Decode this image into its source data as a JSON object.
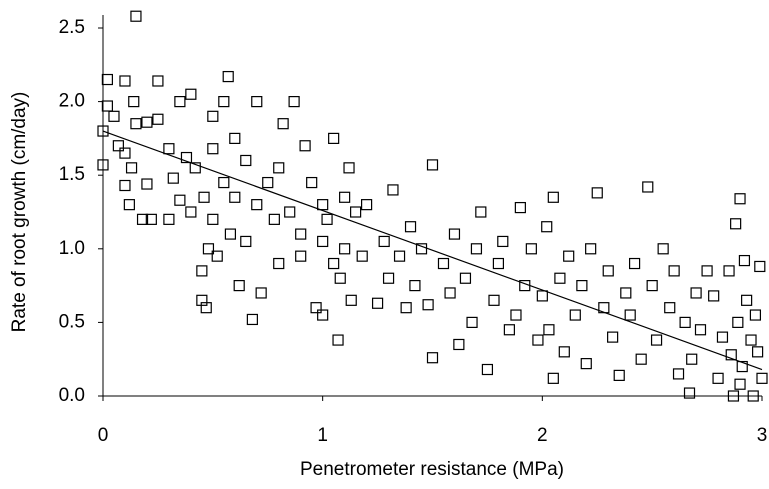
{
  "chart_data": {
    "type": "scatter",
    "xlabel": "Penetrometer resistance (MPa)",
    "ylabel": "Rate of root growth (cm/day)",
    "xlim": [
      0,
      3
    ],
    "ylim": [
      0,
      2.6
    ],
    "xticks": [
      0,
      1,
      2,
      3
    ],
    "yticks": [
      {
        "value": 0,
        "label": "0.0"
      },
      {
        "value": 0.5,
        "label": "0.5"
      },
      {
        "value": 1,
        "label": "1.0"
      },
      {
        "value": 1.5,
        "label": "1.5"
      },
      {
        "value": 2,
        "label": "2.0"
      },
      {
        "value": 2.5,
        "label": "2.5"
      }
    ],
    "series": [
      {
        "color": "#000000",
        "x": [
          0.02,
          0.02,
          0.0,
          0.0,
          0.05,
          0.07,
          0.1,
          0.1,
          0.1,
          0.12,
          0.13,
          0.14,
          0.15,
          0.15,
          0.18,
          0.2,
          0.2,
          0.22,
          0.25,
          0.25,
          0.3,
          0.3,
          0.32,
          0.35,
          0.35,
          0.38,
          0.4,
          0.4,
          0.42,
          0.45,
          0.45,
          0.46,
          0.47,
          0.48,
          0.5,
          0.5,
          0.5,
          0.52,
          0.55,
          0.55,
          0.57,
          0.58,
          0.6,
          0.6,
          0.62,
          0.65,
          0.65,
          0.68,
          0.7,
          0.7,
          0.72,
          0.75,
          0.78,
          0.8,
          0.8,
          0.82,
          0.85,
          0.87,
          0.9,
          0.9,
          0.92,
          0.95,
          0.97,
          1.0,
          1.0,
          1.0,
          1.02,
          1.05,
          1.05,
          1.07,
          1.08,
          1.1,
          1.1,
          1.12,
          1.13,
          1.15,
          1.18,
          1.2,
          1.25,
          1.28,
          1.3,
          1.32,
          1.35,
          1.38,
          1.4,
          1.42,
          1.45,
          1.48,
          1.5,
          1.5,
          1.55,
          1.58,
          1.6,
          1.62,
          1.65,
          1.68,
          1.7,
          1.72,
          1.75,
          1.78,
          1.8,
          1.82,
          1.85,
          1.88,
          1.9,
          1.92,
          1.95,
          1.98,
          2.0,
          2.02,
          2.03,
          2.05,
          2.05,
          2.08,
          2.1,
          2.12,
          2.15,
          2.18,
          2.2,
          2.22,
          2.25,
          2.28,
          2.3,
          2.32,
          2.35,
          2.38,
          2.4,
          2.42,
          2.45,
          2.48,
          2.5,
          2.52,
          2.55,
          2.58,
          2.6,
          2.62,
          2.65,
          2.67,
          2.68,
          2.7,
          2.72,
          2.75,
          2.78,
          2.8,
          2.82,
          2.85,
          2.86,
          2.87,
          2.88,
          2.89,
          2.9,
          2.9,
          2.91,
          2.92,
          2.93,
          2.95,
          2.96,
          2.97,
          2.98,
          2.99,
          3.0
        ],
        "values": [
          1.97,
          2.15,
          1.8,
          1.57,
          1.9,
          1.7,
          2.14,
          1.65,
          1.43,
          1.3,
          1.55,
          2.0,
          2.58,
          1.85,
          1.2,
          1.86,
          1.44,
          1.2,
          2.14,
          1.88,
          1.68,
          1.2,
          1.48,
          1.33,
          2.0,
          1.62,
          2.05,
          1.25,
          1.55,
          0.85,
          0.65,
          1.35,
          0.6,
          1.0,
          1.2,
          1.68,
          1.9,
          0.95,
          1.45,
          2.0,
          2.17,
          1.1,
          1.75,
          1.35,
          0.75,
          1.6,
          1.05,
          0.52,
          2.0,
          1.3,
          0.7,
          1.45,
          1.2,
          0.9,
          1.55,
          1.85,
          1.25,
          2.0,
          1.1,
          0.95,
          1.7,
          1.45,
          0.6,
          1.3,
          1.05,
          0.55,
          1.2,
          0.9,
          1.75,
          0.38,
          0.8,
          1.35,
          1.0,
          1.55,
          0.65,
          1.25,
          0.95,
          1.3,
          0.63,
          1.05,
          0.8,
          1.4,
          0.95,
          0.6,
          1.15,
          0.75,
          1.0,
          0.62,
          1.57,
          0.26,
          0.9,
          0.7,
          1.1,
          0.35,
          0.8,
          0.5,
          1.0,
          1.25,
          0.18,
          0.65,
          0.9,
          1.05,
          0.45,
          0.55,
          1.28,
          0.75,
          1.0,
          0.38,
          0.68,
          1.15,
          0.45,
          0.12,
          1.35,
          0.8,
          0.3,
          0.95,
          0.55,
          0.75,
          0.22,
          1.0,
          1.38,
          0.6,
          0.85,
          0.4,
          0.14,
          0.7,
          0.55,
          0.9,
          0.25,
          1.42,
          0.75,
          0.38,
          1.0,
          0.6,
          0.85,
          0.15,
          0.5,
          0.02,
          0.25,
          0.7,
          0.45,
          0.85,
          0.68,
          0.12,
          0.4,
          0.85,
          0.28,
          0.0,
          1.17,
          0.5,
          1.34,
          0.08,
          0.2,
          0.92,
          0.65,
          0.38,
          0.0,
          0.55,
          0.3,
          0.88,
          0.12
        ]
      }
    ],
    "trendline": {
      "x": [
        0,
        3
      ],
      "y": [
        1.8,
        0.18
      ]
    }
  }
}
